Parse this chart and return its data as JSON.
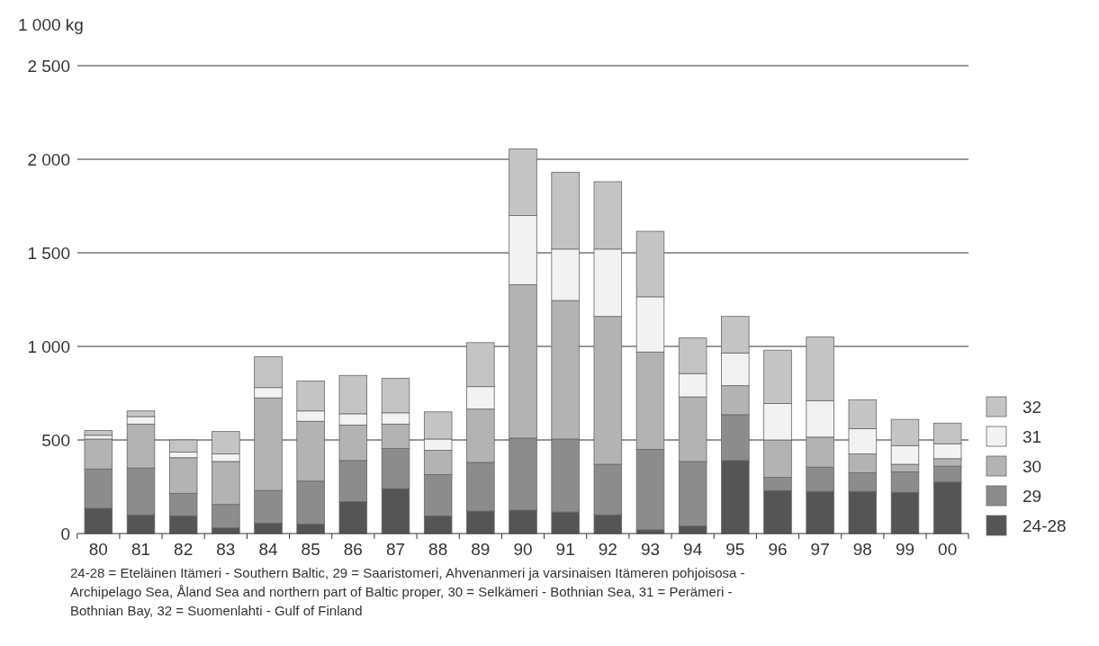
{
  "chart_data": {
    "type": "bar",
    "stacked": true,
    "ylabel": "1 000 kg",
    "categories": [
      "80",
      "81",
      "82",
      "83",
      "84",
      "85",
      "86",
      "87",
      "88",
      "89",
      "90",
      "91",
      "92",
      "93",
      "94",
      "95",
      "96",
      "97",
      "98",
      "99",
      "00"
    ],
    "series": [
      {
        "name": "24-28",
        "color": "#555555",
        "values": [
          135,
          100,
          95,
          30,
          55,
          50,
          170,
          240,
          95,
          120,
          125,
          115,
          100,
          20,
          40,
          390,
          230,
          225,
          225,
          220,
          275
        ]
      },
      {
        "name": "29",
        "color": "#8c8c8c",
        "values": [
          210,
          250,
          120,
          125,
          175,
          230,
          220,
          215,
          220,
          260,
          385,
          390,
          270,
          430,
          345,
          245,
          70,
          130,
          100,
          110,
          85
        ]
      },
      {
        "name": "30",
        "color": "#b3b3b3",
        "values": [
          160,
          235,
          190,
          230,
          495,
          320,
          190,
          130,
          130,
          285,
          820,
          740,
          790,
          520,
          345,
          155,
          200,
          160,
          100,
          40,
          40
        ]
      },
      {
        "name": "31",
        "color": "#f2f2f2",
        "values": [
          20,
          40,
          30,
          40,
          55,
          55,
          60,
          60,
          60,
          120,
          370,
          275,
          360,
          295,
          125,
          175,
          195,
          195,
          135,
          100,
          80
        ]
      },
      {
        "name": "32",
        "color": "#c4c4c4",
        "values": [
          25,
          30,
          65,
          120,
          165,
          160,
          205,
          185,
          145,
          235,
          355,
          410,
          360,
          350,
          190,
          195,
          285,
          340,
          155,
          140,
          110
        ]
      }
    ],
    "ylim": [
      0,
      2500
    ],
    "yticks": [
      0,
      {
        "value": 500,
        "label": "500"
      },
      {
        "value": 1000,
        "label": "1 000"
      },
      {
        "value": 1500,
        "label": "1 500"
      },
      {
        "value": 2000,
        "label": "2 000"
      },
      {
        "value": 2500,
        "label": "2 500"
      }
    ],
    "grid": "y",
    "legend": "right",
    "annotations": [
      "24-28 = Eteläinen Itämeri - Southern Baltic, 29 = Saaristomeri, Ahvenanmeri ja varsinaisen Itämeren pohjoisosa - Archipelago Sea,  Åland Sea and northern part of Baltic proper, 30 = Selkämeri - Bothnian Sea, 31 = Perämeri - Bothnian Bay, 32 = Suomenlahti - Gulf of Finland"
    ]
  }
}
